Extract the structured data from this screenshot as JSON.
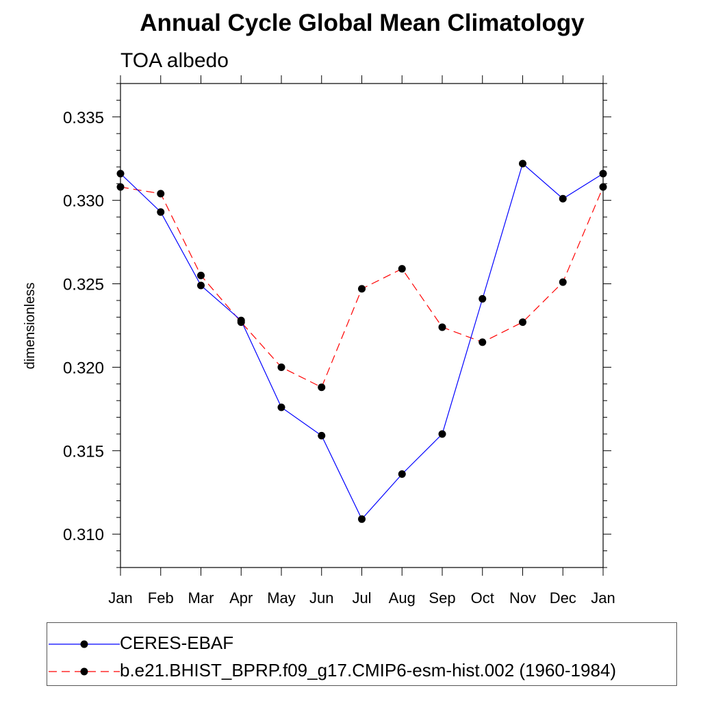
{
  "chart_data": {
    "type": "line",
    "title": "Annual Cycle Global Mean Climatology",
    "subtitle": "TOA albedo",
    "xlabel": "",
    "ylabel": "dimensionless",
    "categories": [
      "Jan",
      "Feb",
      "Mar",
      "Apr",
      "May",
      "Jun",
      "Jul",
      "Aug",
      "Sep",
      "Oct",
      "Nov",
      "Dec",
      "Jan"
    ],
    "ylim": [
      0.308,
      0.337
    ],
    "yticks": [
      "0.310",
      "0.315",
      "0.320",
      "0.325",
      "0.330",
      "0.335"
    ],
    "grid": false,
    "legend_position": "bottom",
    "series": [
      {
        "name": "CERES-EBAF",
        "color": "#0000ff",
        "line_style": "solid",
        "values": [
          0.3316,
          0.3293,
          0.3249,
          0.3228,
          0.3176,
          0.3159,
          0.3109,
          0.3136,
          0.316,
          0.3241,
          0.3322,
          0.3301,
          0.3316
        ]
      },
      {
        "name": "b.e21.BHIST_BPRP.f09_g17.CMIP6-esm-hist.002 (1960-1984)",
        "color": "#ff0000",
        "line_style": "dashed",
        "values": [
          0.3308,
          0.3304,
          0.3255,
          0.3227,
          0.32,
          0.3188,
          0.3247,
          0.3259,
          0.3224,
          0.3215,
          0.3227,
          0.3251,
          0.3308
        ]
      }
    ]
  }
}
